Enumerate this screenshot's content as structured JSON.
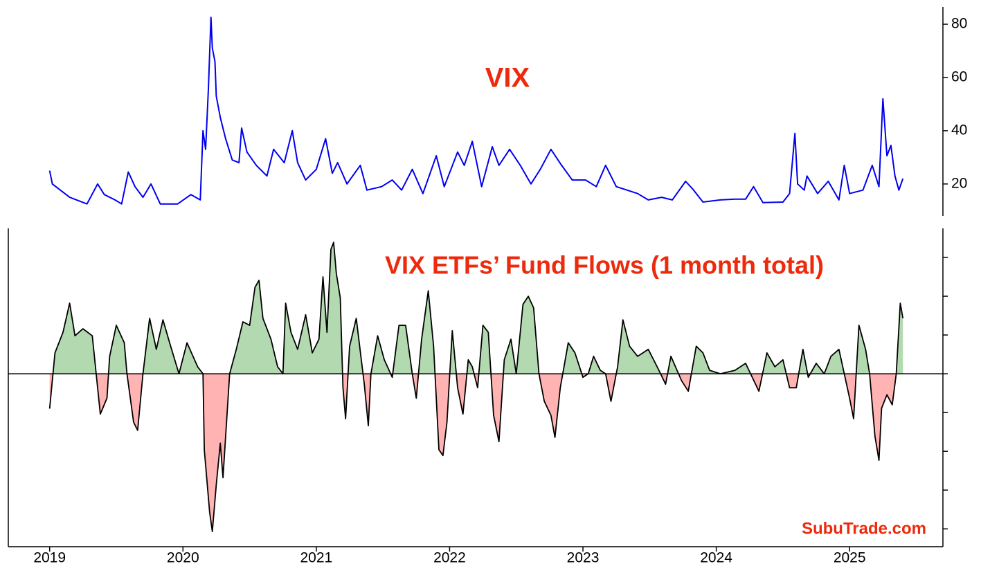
{
  "chart_data": [
    {
      "type": "line",
      "title": "VIX",
      "color": "#0000ee",
      "y_axis_side": "right",
      "xlim": [
        2018.69,
        2025.7
      ],
      "ylim": [
        8,
        86.5
      ],
      "yticks": [
        20,
        40,
        60,
        80
      ],
      "x": [
        2019.0,
        2019.02,
        2019.15,
        2019.28,
        2019.36,
        2019.41,
        2019.49,
        2019.54,
        2019.59,
        2019.64,
        2019.7,
        2019.76,
        2019.83,
        2019.96,
        2020.06,
        2020.13,
        2020.15,
        2020.17,
        2020.19,
        2020.21,
        2020.22,
        2020.24,
        2020.25,
        2020.28,
        2020.32,
        2020.37,
        2020.42,
        2020.44,
        2020.48,
        2020.55,
        2020.63,
        2020.68,
        2020.76,
        2020.82,
        2020.86,
        2020.92,
        2021.0,
        2021.07,
        2021.12,
        2021.16,
        2021.23,
        2021.33,
        2021.38,
        2021.49,
        2021.57,
        2021.64,
        2021.72,
        2021.8,
        2021.9,
        2021.96,
        2022.06,
        2022.11,
        2022.17,
        2022.24,
        2022.32,
        2022.37,
        2022.45,
        2022.53,
        2022.61,
        2022.68,
        2022.76,
        2022.84,
        2022.92,
        2023.02,
        2023.1,
        2023.17,
        2023.25,
        2023.33,
        2023.41,
        2023.49,
        2023.59,
        2023.67,
        2023.77,
        2023.83,
        2023.9,
        2024.03,
        2024.14,
        2024.22,
        2024.28,
        2024.35,
        2024.5,
        2024.55,
        2024.59,
        2024.61,
        2024.66,
        2024.68,
        2024.76,
        2024.84,
        2024.92,
        2024.96,
        2025.0,
        2025.1,
        2025.17,
        2025.22,
        2025.25,
        2025.28,
        2025.31,
        2025.34,
        2025.37,
        2025.4
      ],
      "values": [
        25,
        20,
        15,
        12.5,
        20,
        16,
        14,
        12.5,
        24.5,
        19,
        15,
        20,
        12.5,
        12.5,
        16,
        14,
        40,
        33,
        55,
        82.6,
        71,
        66,
        53,
        45,
        37,
        29,
        28,
        41,
        32,
        27,
        23,
        33,
        28,
        40,
        28,
        21.5,
        25.5,
        37,
        24,
        28,
        20,
        27,
        17.7,
        19,
        21.5,
        17.7,
        25.5,
        16.4,
        30.6,
        19,
        32,
        27,
        36,
        19,
        34,
        27,
        33,
        27,
        20,
        25.5,
        33,
        27,
        21.5,
        21.5,
        19,
        27,
        19,
        17.7,
        16.4,
        14,
        15,
        14,
        21,
        17.7,
        13.2,
        14,
        14.3,
        14.3,
        19,
        13,
        13.2,
        16.4,
        39,
        20,
        17.7,
        23,
        16.4,
        21,
        14,
        27,
        16.4,
        17.7,
        27,
        19,
        52,
        30.6,
        34.5,
        23,
        17.7,
        22
      ]
    },
    {
      "type": "area",
      "title": "VIX ETFs’ Fund Flows (1 month total)",
      "annotation": "SubuTrade.com",
      "line_color": "#000000",
      "positive_color": "#b3d9b0",
      "negative_color": "#ffb3b3",
      "ytick_labels": false,
      "xlim": [
        2018.69,
        2025.7
      ],
      "xticks": [
        2019,
        2020,
        2021,
        2022,
        2023,
        2024,
        2025
      ],
      "ylim": [
        -4.46,
        3.75
      ],
      "yticks": [
        -4,
        -3,
        -2,
        -1,
        0,
        1,
        2,
        3
      ],
      "x": [
        2019.0,
        2019.04,
        2019.1,
        2019.15,
        2019.19,
        2019.25,
        2019.32,
        2019.36,
        2019.38,
        2019.43,
        2019.45,
        2019.5,
        2019.56,
        2019.58,
        2019.63,
        2019.66,
        2019.7,
        2019.75,
        2019.8,
        2019.85,
        2019.9,
        2019.97,
        2020.03,
        2020.11,
        2020.15,
        2020.16,
        2020.2,
        2020.22,
        2020.25,
        2020.28,
        2020.3,
        2020.35,
        2020.4,
        2020.45,
        2020.5,
        2020.54,
        2020.57,
        2020.6,
        2020.66,
        2020.71,
        2020.75,
        2020.77,
        2020.81,
        2020.86,
        2020.92,
        2020.97,
        2021.02,
        2021.05,
        2021.08,
        2021.11,
        2021.13,
        2021.15,
        2021.18,
        2021.2,
        2021.22,
        2021.25,
        2021.3,
        2021.36,
        2021.39,
        2021.41,
        2021.46,
        2021.51,
        2021.57,
        2021.62,
        2021.67,
        2021.72,
        2021.75,
        2021.79,
        2021.84,
        2021.88,
        2021.92,
        2021.95,
        2021.98,
        2022.02,
        2022.06,
        2022.1,
        2022.14,
        2022.17,
        2022.21,
        2022.25,
        2022.29,
        2022.33,
        2022.37,
        2022.41,
        2022.46,
        2022.5,
        2022.55,
        2022.59,
        2022.63,
        2022.67,
        2022.71,
        2022.76,
        2022.79,
        2022.83,
        2022.89,
        2022.94,
        2023.0,
        2023.04,
        2023.08,
        2023.13,
        2023.17,
        2023.21,
        2023.26,
        2023.3,
        2023.35,
        2023.41,
        2023.49,
        2023.57,
        2023.62,
        2023.66,
        2023.74,
        2023.79,
        2023.85,
        2023.9,
        2023.95,
        2024.03,
        2024.14,
        2024.22,
        2024.27,
        2024.32,
        2024.38,
        2024.44,
        2024.5,
        2024.55,
        2024.6,
        2024.65,
        2024.69,
        2024.75,
        2024.81,
        2024.86,
        2024.92,
        2024.96,
        2025.0,
        2025.03,
        2025.07,
        2025.12,
        2025.15,
        2025.19,
        2025.22,
        2025.24,
        2025.28,
        2025.32,
        2025.35,
        2025.38,
        2025.4
      ],
      "values": [
        -0.9,
        0.54,
        1.07,
        1.82,
        0.98,
        1.16,
        0.98,
        -0.36,
        -1.04,
        -0.63,
        0.45,
        1.25,
        0.8,
        0,
        -1.25,
        -1.46,
        0,
        1.43,
        0.63,
        1.39,
        0.8,
        0,
        0.8,
        0.18,
        0,
        -1.96,
        -3.57,
        -4.07,
        -2.86,
        -1.79,
        -2.68,
        0,
        0.63,
        1.34,
        1.25,
        2.23,
        2.41,
        1.43,
        0.89,
        0.18,
        0,
        1.82,
        1.07,
        0.63,
        1.52,
        0.54,
        0.89,
        2.5,
        1.07,
        3.21,
        3.39,
        2.59,
        1.96,
        -0.36,
        -1.16,
        0.71,
        1.43,
        -0.27,
        -1.34,
        0,
        0.98,
        0.36,
        -0.09,
        1.25,
        1.25,
        0,
        -0.63,
        0.89,
        2.14,
        0.71,
        -1.96,
        -2.11,
        -1.25,
        1.11,
        -0.36,
        -1.04,
        0.36,
        0.18,
        -0.36,
        1.25,
        1.07,
        -1.07,
        -1.75,
        0.36,
        0.89,
        0,
        1.79,
        2.0,
        1.7,
        0,
        -0.71,
        -1.07,
        -1.64,
        -0.36,
        0.8,
        0.54,
        -0.09,
        0,
        0.45,
        0.09,
        0,
        -0.71,
        0.18,
        1.39,
        0.71,
        0.45,
        0.63,
        0.09,
        -0.27,
        0.45,
        -0.18,
        -0.45,
        0.71,
        0.54,
        0.09,
        0,
        0.09,
        0.27,
        -0.09,
        -0.45,
        0.54,
        0.18,
        0.36,
        -0.36,
        -0.36,
        0.63,
        -0.09,
        0.27,
        0,
        0.45,
        0.63,
        0,
        -0.63,
        -1.16,
        1.25,
        0.63,
        0,
        -1.61,
        -2.23,
        -0.89,
        -0.54,
        -0.8,
        0,
        1.82,
        1.43
      ]
    }
  ]
}
